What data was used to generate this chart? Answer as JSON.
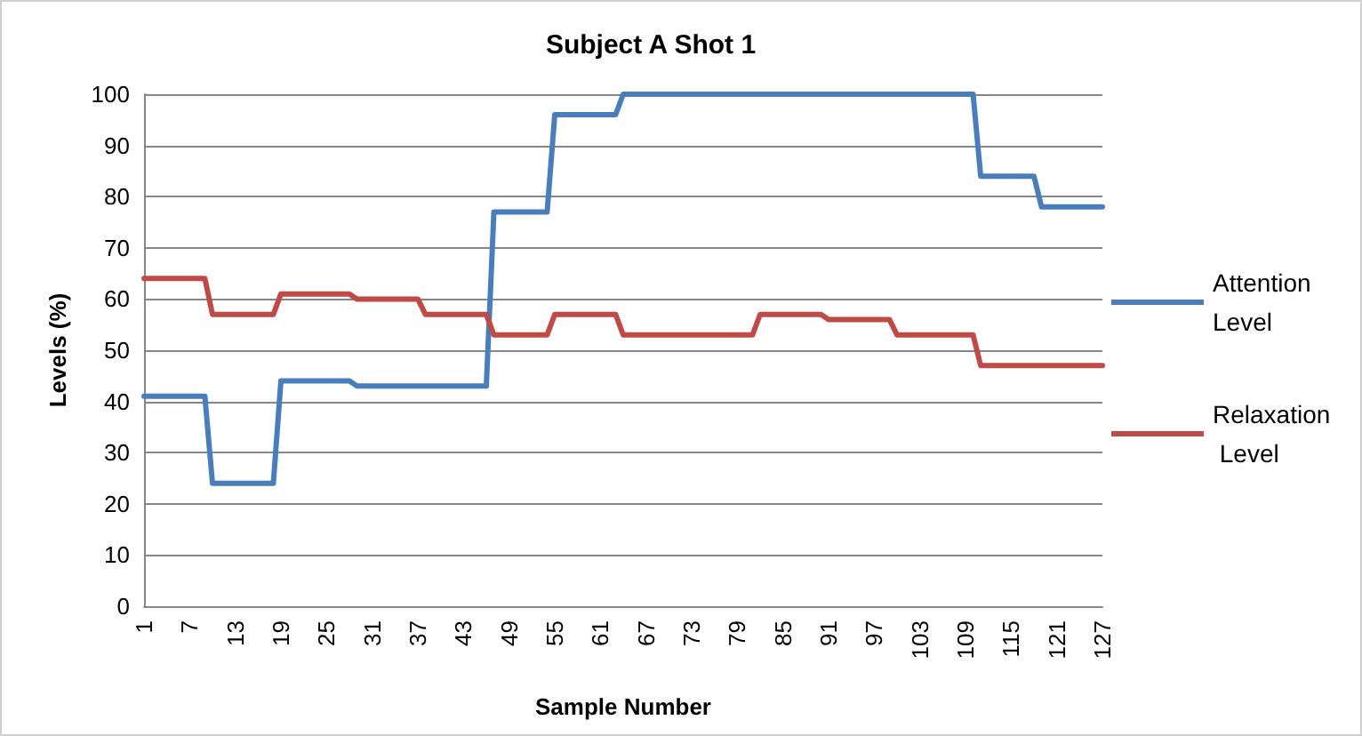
{
  "chart_data": {
    "type": "line",
    "title": "Subject A Shot 1",
    "xlabel": "Sample Number",
    "ylabel": "Levels (%)",
    "categories": [
      "1",
      null,
      null,
      null,
      null,
      null,
      "7",
      null,
      null,
      null,
      null,
      null,
      "13",
      null,
      null,
      null,
      null,
      null,
      "19",
      null,
      null,
      null,
      null,
      null,
      "25",
      null,
      null,
      null,
      null,
      null,
      "31",
      null,
      null,
      null,
      null,
      null,
      "37",
      null,
      null,
      null,
      null,
      null,
      "43",
      null,
      null,
      null,
      null,
      null,
      "49",
      null,
      null,
      null,
      null,
      null,
      "55",
      null,
      null,
      null,
      null,
      null,
      "61",
      null,
      null,
      null,
      null,
      null,
      "67",
      null,
      null,
      null,
      null,
      null,
      "73",
      null,
      null,
      null,
      null,
      null,
      "79",
      null,
      null,
      null,
      null,
      null,
      "85",
      null,
      null,
      null,
      null,
      null,
      "91",
      null,
      null,
      null,
      null,
      null,
      "97",
      null,
      null,
      null,
      null,
      null,
      "103",
      null,
      null,
      null,
      null,
      null,
      "109",
      null,
      null,
      null,
      null,
      null,
      "115",
      null,
      null,
      null,
      null,
      null,
      "121",
      null,
      null,
      null,
      null,
      null,
      "127"
    ],
    "series": [
      {
        "name": "Attention Level",
        "color": "#4a7ebb",
        "values": [
          41,
          41,
          41,
          41,
          41,
          41,
          41,
          41,
          41,
          24,
          24,
          24,
          24,
          24,
          24,
          24,
          24,
          24,
          44,
          44,
          44,
          44,
          44,
          44,
          44,
          44,
          44,
          44,
          43,
          43,
          43,
          43,
          43,
          43,
          43,
          43,
          43,
          43,
          43,
          43,
          43,
          43,
          43,
          43,
          43,
          43,
          77,
          77,
          77,
          77,
          77,
          77,
          77,
          77,
          96,
          96,
          96,
          96,
          96,
          96,
          96,
          96,
          96,
          100,
          100,
          100,
          100,
          100,
          100,
          100,
          100,
          100,
          100,
          100,
          100,
          100,
          100,
          100,
          100,
          100,
          100,
          100,
          100,
          100,
          100,
          100,
          100,
          100,
          100,
          100,
          100,
          100,
          100,
          100,
          100,
          100,
          100,
          100,
          100,
          100,
          100,
          100,
          100,
          100,
          100,
          100,
          100,
          100,
          100,
          100,
          84,
          84,
          84,
          84,
          84,
          84,
          84,
          84,
          78,
          78,
          78,
          78,
          78,
          78,
          78,
          78,
          78
        ]
      },
      {
        "name": "Relaxation Level",
        "color": "#be4b48",
        "values": [
          64,
          64,
          64,
          64,
          64,
          64,
          64,
          64,
          64,
          57,
          57,
          57,
          57,
          57,
          57,
          57,
          57,
          57,
          61,
          61,
          61,
          61,
          61,
          61,
          61,
          61,
          61,
          61,
          60,
          60,
          60,
          60,
          60,
          60,
          60,
          60,
          60,
          57,
          57,
          57,
          57,
          57,
          57,
          57,
          57,
          57,
          53,
          53,
          53,
          53,
          53,
          53,
          53,
          53,
          57,
          57,
          57,
          57,
          57,
          57,
          57,
          57,
          57,
          53,
          53,
          53,
          53,
          53,
          53,
          53,
          53,
          53,
          53,
          53,
          53,
          53,
          53,
          53,
          53,
          53,
          53,
          57,
          57,
          57,
          57,
          57,
          57,
          57,
          57,
          57,
          56,
          56,
          56,
          56,
          56,
          56,
          56,
          56,
          56,
          53,
          53,
          53,
          53,
          53,
          53,
          53,
          53,
          53,
          53,
          53,
          47,
          47,
          47,
          47,
          47,
          47,
          47,
          47,
          47,
          47,
          47,
          47,
          47,
          47,
          47,
          47,
          47
        ]
      }
    ],
    "ylim": [
      0,
      100
    ],
    "yticks": [
      0,
      10,
      20,
      30,
      40,
      50,
      60,
      70,
      80,
      90,
      100
    ],
    "grid": "y",
    "legend": "right",
    "marker": "none",
    "line_style": "solid"
  }
}
